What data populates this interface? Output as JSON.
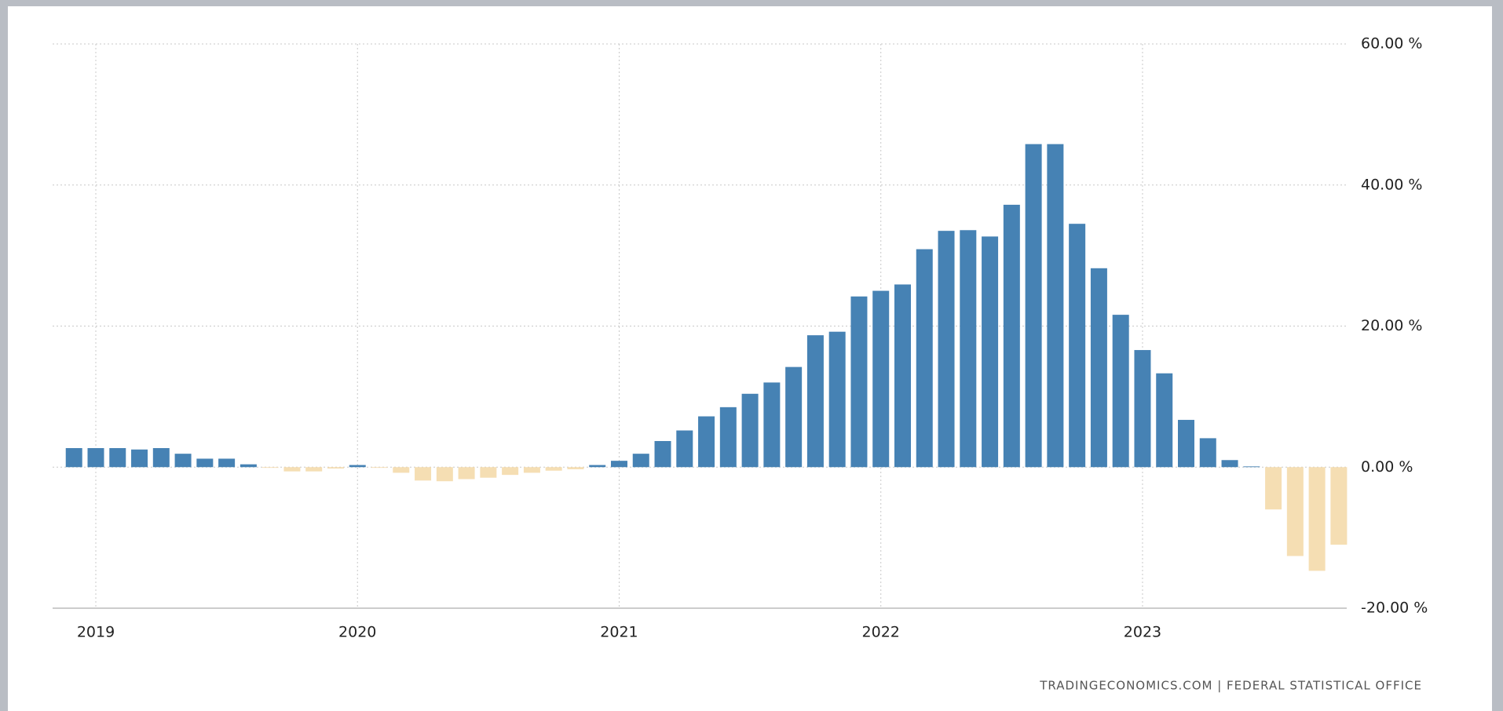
{
  "chart_data": {
    "type": "bar",
    "categories": [
      null,
      "2019",
      null,
      null,
      null,
      null,
      null,
      null,
      null,
      null,
      null,
      null,
      null,
      "2020",
      null,
      null,
      null,
      null,
      null,
      null,
      null,
      null,
      null,
      null,
      null,
      "2021",
      null,
      null,
      null,
      null,
      null,
      null,
      null,
      null,
      null,
      null,
      null,
      "2022",
      null,
      null,
      null,
      null,
      null,
      null,
      null,
      null,
      null,
      null,
      null,
      "2023",
      null,
      null,
      null,
      null,
      null,
      null,
      null,
      null,
      null
    ],
    "values": [
      2.7,
      2.7,
      2.7,
      2.5,
      2.7,
      1.9,
      1.2,
      1.2,
      0.4,
      -0.1,
      -0.6,
      -0.6,
      -0.2,
      0.3,
      -0.1,
      -0.8,
      -1.9,
      -2.0,
      -1.7,
      -1.5,
      -1.1,
      -0.8,
      -0.5,
      -0.3,
      0.3,
      0.9,
      1.9,
      3.7,
      5.2,
      7.2,
      8.5,
      10.4,
      12.0,
      14.2,
      18.7,
      19.2,
      24.2,
      25.0,
      25.9,
      30.9,
      33.5,
      33.6,
      32.7,
      37.2,
      45.8,
      45.8,
      34.5,
      28.2,
      21.6,
      16.6,
      13.3,
      6.7,
      4.1,
      1.0,
      0.1,
      -6.0,
      -12.6,
      -14.7,
      -11.0
    ],
    "positive_color": "#4682b4",
    "negative_color": "#f5deb3",
    "ylim": [
      -20,
      60
    ],
    "yticks": [
      {
        "value": -20,
        "label": "-20.00 %"
      },
      {
        "value": 0,
        "label": "0.00 %"
      },
      {
        "value": 20,
        "label": "20.00 %"
      },
      {
        "value": 40,
        "label": "40.00 %"
      },
      {
        "value": 60,
        "label": "60.00 %"
      }
    ],
    "grid": true,
    "source": "TRADINGECONOMICS.COM  |  FEDERAL STATISTICAL OFFICE"
  }
}
